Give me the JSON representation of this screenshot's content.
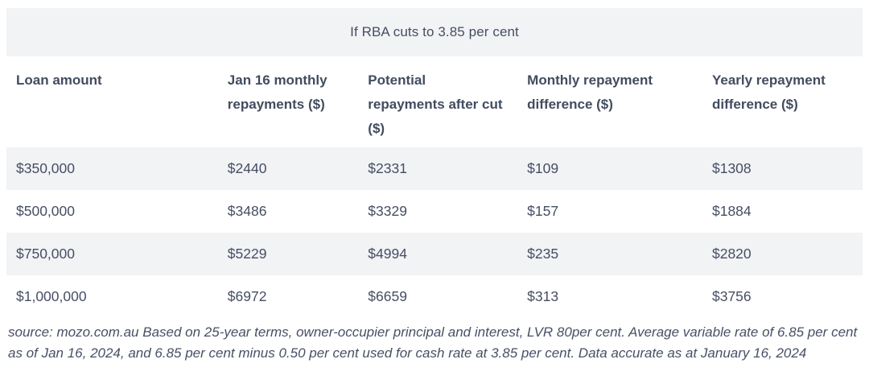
{
  "colors": {
    "stripe_and_banner_bg": "#f2f3f5",
    "text": "#454e63",
    "page_bg": "#ffffff"
  },
  "chart_data": {
    "type": "table",
    "title": "If RBA cuts to 3.85 per cent",
    "columns": [
      "Loan amount",
      "Jan 16 monthly repayments ($)",
      "Potential repayments after cut ($)",
      "Monthly repayment difference ($)",
      "Yearly repayment difference ($)"
    ],
    "rows": [
      [
        "$350,000",
        "$2440",
        "$2331",
        "$109",
        "$1308"
      ],
      [
        "$500,000",
        "$3486",
        "$3329",
        "$157",
        "$1884"
      ],
      [
        "$750,000",
        "$5229",
        "$4994",
        "$235",
        "$2820"
      ],
      [
        "$1,000,000",
        "$6972",
        "$6659",
        "$313",
        "$3756"
      ]
    ],
    "source_note": "source: mozo.com.au Based on 25-year terms, owner-occupier principal and interest, LVR 80per cent. Average variable rate of 6.85 per cent as of Jan 16, 2024, and 6.85 per cent minus 0.50 per cent used for cash rate at 3.85 per cent. Data accurate as at January 16, 2024",
    "layout": {
      "striped_rows": [
        1,
        3
      ],
      "header_banner": true
    }
  }
}
